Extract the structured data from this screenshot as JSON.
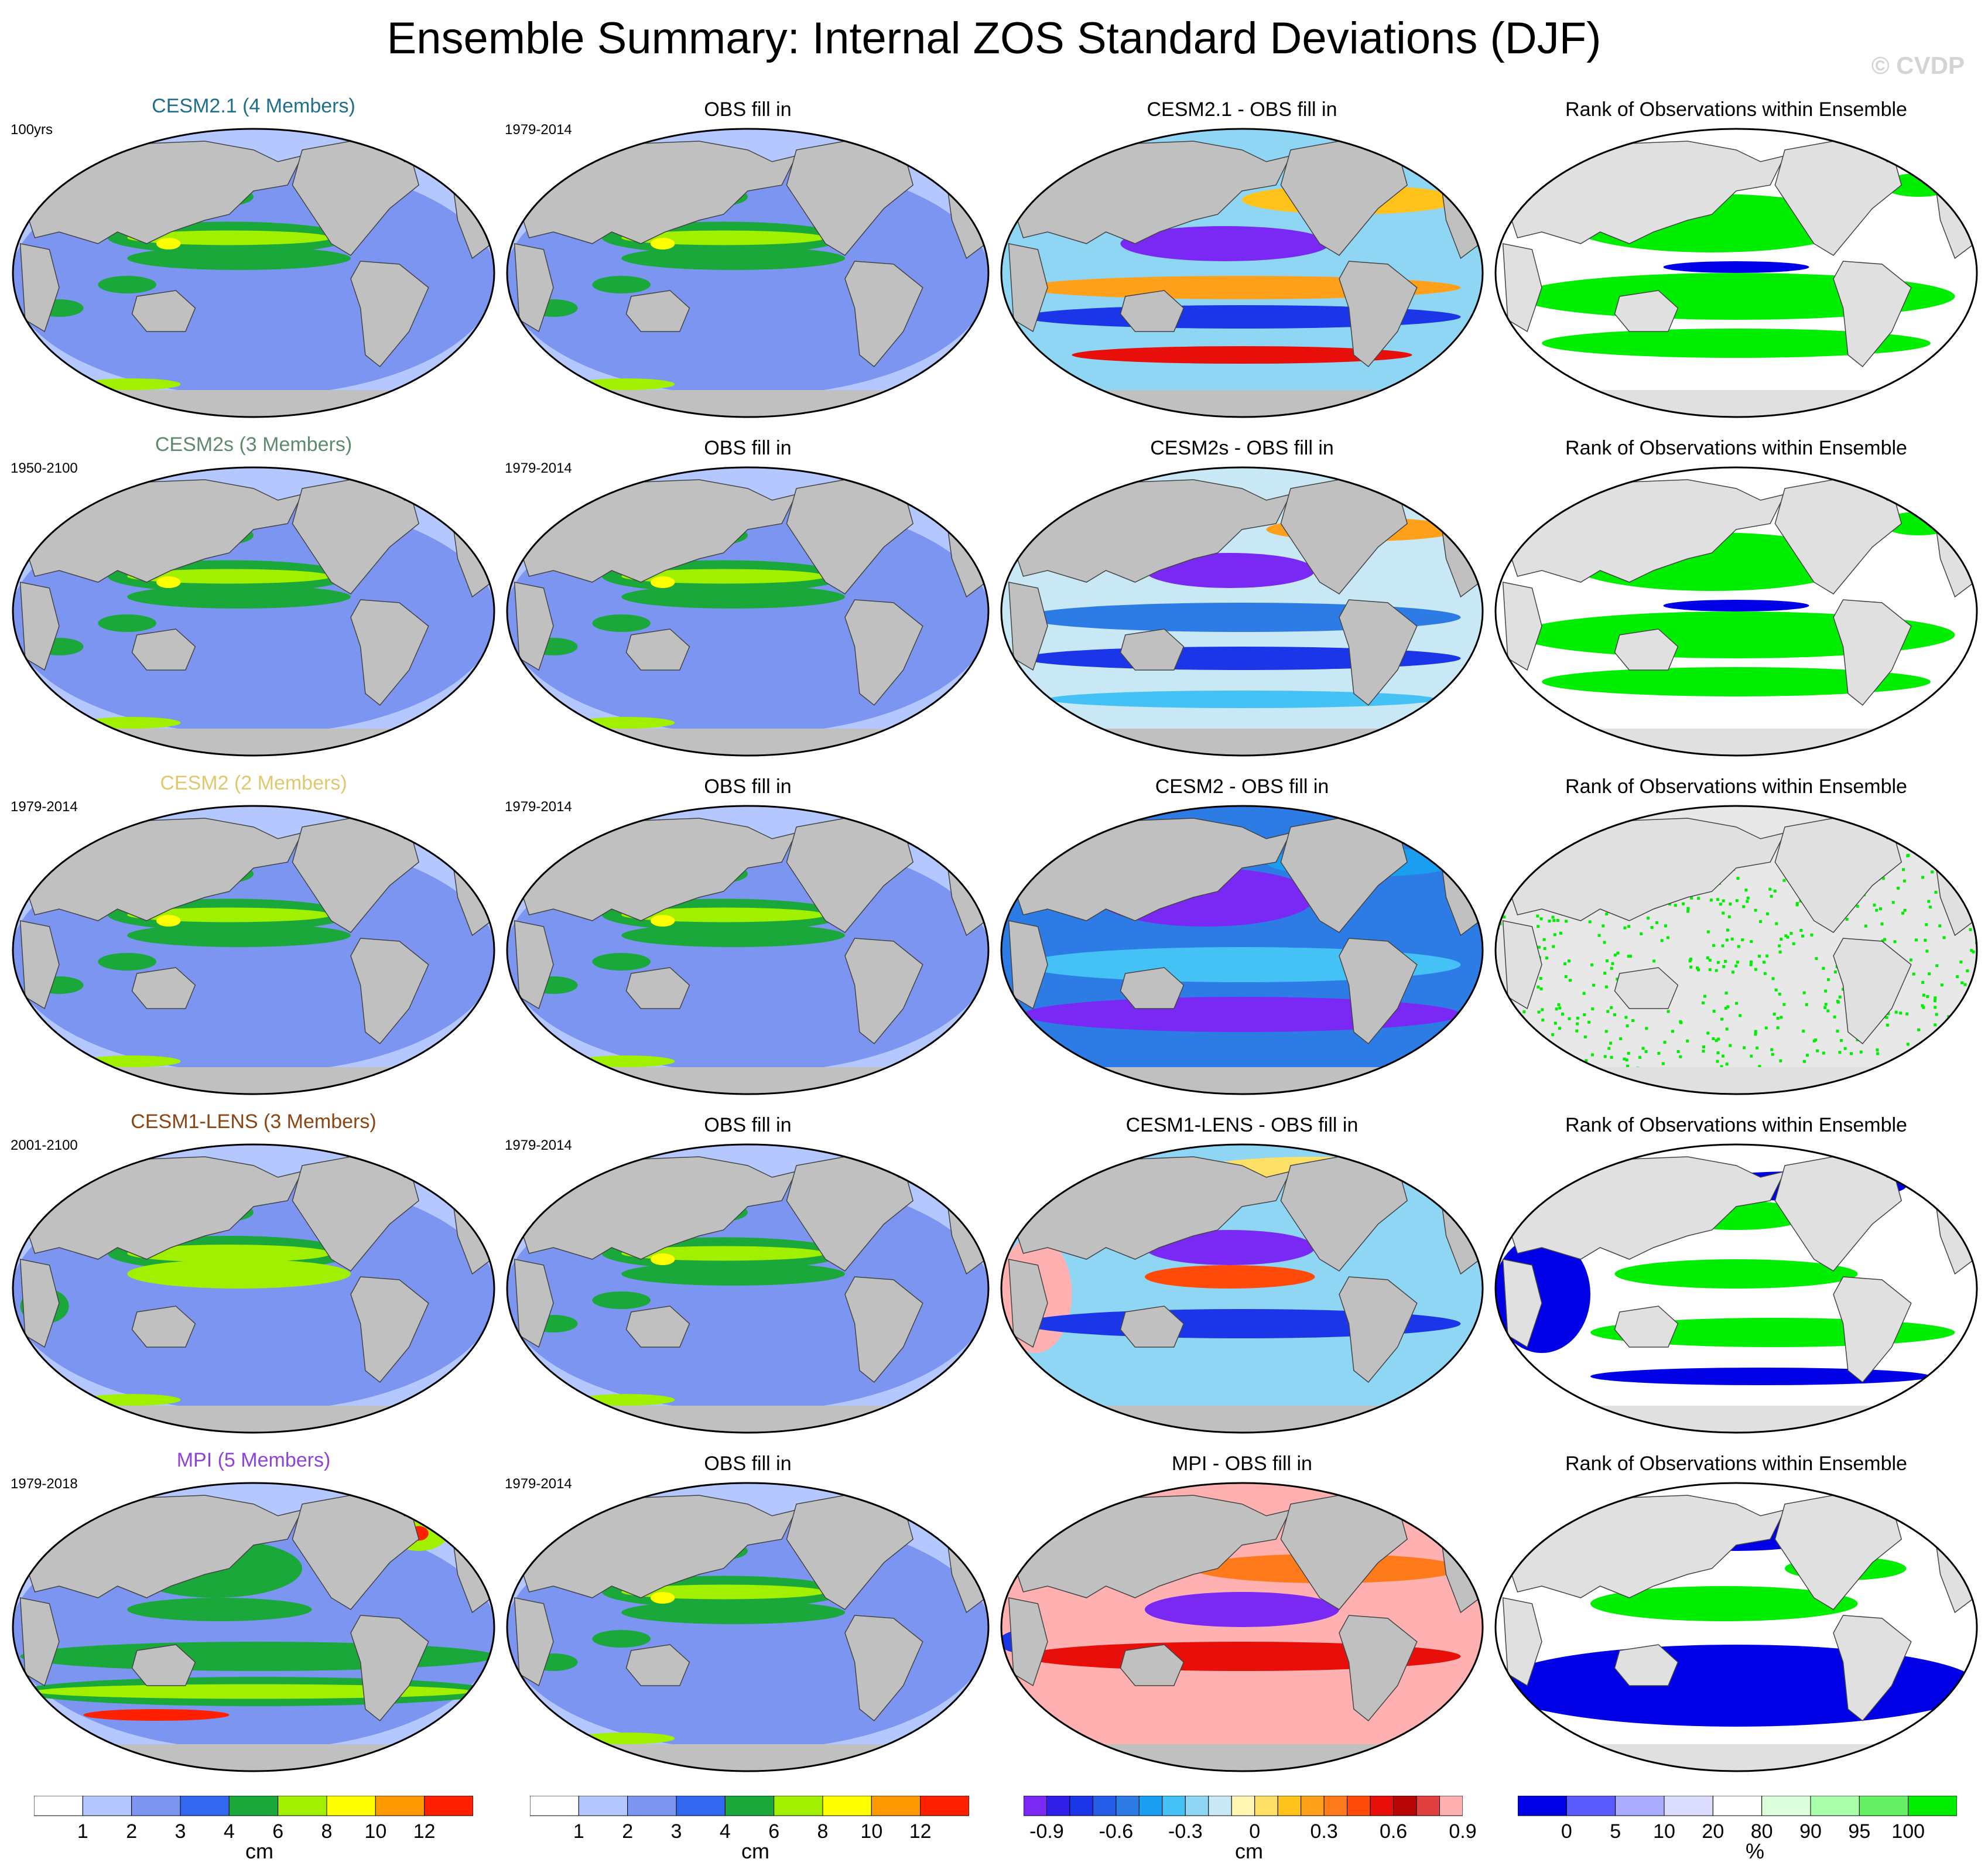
{
  "title": "Ensemble Summary: Internal ZOS Standard Deviations (DJF)",
  "watermark": "© CVDP",
  "rows": [
    {
      "model": "CESM2.1 (4 Members)",
      "model_color": "#1f6f8b",
      "model_period": "100yrs",
      "obs_period": "1979-2014",
      "diff_title": "CESM2.1 - OBS fill in",
      "model_style": "normal",
      "diff_style": "mixed",
      "rank_style": "green"
    },
    {
      "model": "CESM2s (3 Members)",
      "model_color": "#5e8a6e",
      "model_period": "1950-2100",
      "obs_period": "1979-2014",
      "diff_title": "CESM2s - OBS fill in",
      "model_style": "normal",
      "diff_style": "blueish",
      "rank_style": "green"
    },
    {
      "model": "CESM2 (2 Members)",
      "model_color": "#e0c870",
      "model_period": "1979-2014",
      "obs_period": "1979-2014",
      "diff_title": "CESM2 - OBS fill in",
      "model_style": "normal",
      "diff_style": "blue",
      "rank_style": "sparse"
    },
    {
      "model": "CESM1-LENS (3 Members)",
      "model_color": "#8b4513",
      "model_period": "2001-2100",
      "obs_period": "1979-2014",
      "diff_title": "CESM1-LENS - OBS fill in",
      "model_style": "strong",
      "diff_style": "mixedpink",
      "rank_style": "mixedblue"
    },
    {
      "model": "MPI (5 Members)",
      "model_color": "#8e44d8",
      "model_period": "1979-2018",
      "obs_period": "1979-2014",
      "diff_title": "MPI - OBS fill in",
      "model_style": "southern",
      "diff_style": "pink",
      "rank_style": "blue"
    }
  ],
  "obs_title": "OBS fill in",
  "rank_title": "Rank of Observations within Ensemble",
  "colorbars": {
    "sd": {
      "colors": [
        "#ffffff",
        "#b4c8ff",
        "#7b95f0",
        "#3267f0",
        "#1aa83a",
        "#a0f000",
        "#ffff00",
        "#ff9900",
        "#ff2000"
      ],
      "labels": [
        "1",
        "2",
        "3",
        "4",
        "6",
        "8",
        "10",
        "12"
      ],
      "unit": "cm"
    },
    "diff": {
      "colors": [
        "#7a29f5",
        "#2f1fe6",
        "#1b36e8",
        "#245ee8",
        "#2d7ce6",
        "#1a9ff0",
        "#44c2f5",
        "#8fd6f5",
        "#c8e8f5",
        "#fff7b3",
        "#ffe066",
        "#ffc21a",
        "#ffa01a",
        "#ff7a1a",
        "#ff4a0a",
        "#e80f0a",
        "#b80606",
        "#e04040",
        "#ffb0b0"
      ],
      "labels": [
        "-0.9",
        "-0.6",
        "-0.3",
        "0",
        "0.3",
        "0.6",
        "0.9"
      ],
      "unit": "cm"
    },
    "rank": {
      "colors": [
        "#0000e6",
        "#5a5aff",
        "#aaaaff",
        "#dcdcff",
        "#ffffff",
        "#dcffdc",
        "#aaffaa",
        "#66f066",
        "#00ee00"
      ],
      "labels": [
        "0",
        "5",
        "10",
        "20",
        "80",
        "90",
        "95",
        "100"
      ],
      "unit": "%"
    }
  }
}
